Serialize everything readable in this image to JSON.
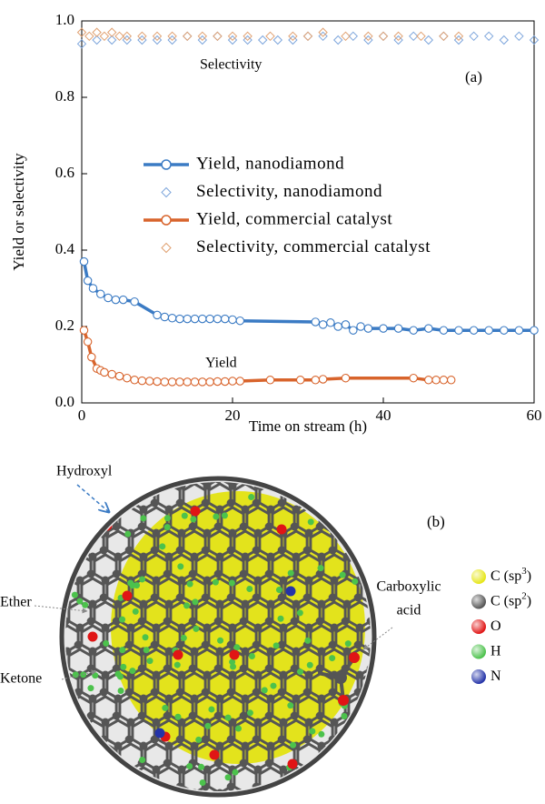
{
  "chart_data": {
    "type": "line",
    "label": "(a)",
    "x_label": "Time on stream (h)",
    "y_label": "Yield or selectivity",
    "annotations": [
      "Selectivity",
      "Yield"
    ],
    "xlim": [
      0,
      60
    ],
    "xticks": [
      0,
      20,
      40,
      60
    ],
    "ylim": [
      0,
      1
    ],
    "yticks": [
      {
        "value": 0,
        "label": "0.0"
      },
      0.2,
      0.4,
      0.6,
      0.8,
      {
        "value": 1,
        "label": "1.0"
      }
    ],
    "series": [
      {
        "name": "Yield, nanodiamond",
        "color": "#3b7bc4",
        "marker": "circle",
        "line": true,
        "x": [
          0.3,
          0.8,
          1.5,
          2.5,
          3.5,
          4.5,
          5.5,
          7,
          10,
          11,
          12,
          13,
          14,
          15,
          16,
          17,
          18,
          19,
          20,
          21,
          31,
          32,
          33,
          34,
          35,
          36,
          37,
          38,
          40,
          42,
          44,
          46,
          48,
          50,
          52,
          54,
          56,
          58,
          60
        ],
        "values": [
          0.37,
          0.32,
          0.3,
          0.285,
          0.275,
          0.27,
          0.27,
          0.265,
          0.23,
          0.225,
          0.222,
          0.22,
          0.22,
          0.22,
          0.22,
          0.22,
          0.22,
          0.22,
          0.218,
          0.215,
          0.212,
          0.205,
          0.21,
          0.2,
          0.205,
          0.19,
          0.2,
          0.195,
          0.195,
          0.195,
          0.19,
          0.195,
          0.19,
          0.19,
          0.19,
          0.19,
          0.19,
          0.19,
          0.19
        ]
      },
      {
        "name": "Selectivity, nanodiamond",
        "color": "#7ea6dc",
        "marker": "diamond",
        "line": false,
        "x": [
          0,
          2,
          4,
          6,
          8,
          10,
          12,
          14,
          16,
          18,
          20,
          22,
          24,
          26,
          28,
          30,
          32,
          34,
          36,
          38,
          40,
          42,
          44,
          46,
          48,
          50,
          52,
          54,
          56,
          58,
          60
        ],
        "values": [
          0.94,
          0.95,
          0.95,
          0.95,
          0.95,
          0.95,
          0.95,
          0.96,
          0.95,
          0.96,
          0.95,
          0.95,
          0.95,
          0.95,
          0.95,
          0.96,
          0.96,
          0.95,
          0.96,
          0.95,
          0.96,
          0.95,
          0.96,
          0.95,
          0.96,
          0.95,
          0.96,
          0.96,
          0.95,
          0.96,
          0.95
        ]
      },
      {
        "name": "Yield, commercial catalyst",
        "color": "#d8642c",
        "marker": "circle",
        "line": true,
        "x": [
          0.3,
          0.8,
          1.3,
          2,
          2.5,
          3,
          4,
          5,
          6,
          7,
          8,
          9,
          10,
          11,
          12,
          13,
          14,
          15,
          16,
          17,
          18,
          19,
          20,
          21,
          25,
          29,
          31,
          32,
          35,
          44,
          46,
          47,
          48,
          49
        ],
        "values": [
          0.19,
          0.16,
          0.12,
          0.09,
          0.085,
          0.08,
          0.075,
          0.07,
          0.065,
          0.06,
          0.058,
          0.057,
          0.056,
          0.055,
          0.055,
          0.055,
          0.055,
          0.055,
          0.055,
          0.055,
          0.056,
          0.056,
          0.057,
          0.057,
          0.06,
          0.06,
          0.06,
          0.062,
          0.065,
          0.065,
          0.06,
          0.06,
          0.06,
          0.06
        ]
      },
      {
        "name": "Selectivity, commercial catalyst",
        "color": "#e0a070",
        "marker": "diamond",
        "line": false,
        "x": [
          0,
          1,
          2,
          3,
          4,
          5,
          6,
          8,
          10,
          12,
          14,
          16,
          18,
          20,
          22,
          25,
          28,
          30,
          32,
          35,
          38,
          40,
          42,
          45,
          48,
          50
        ],
        "values": [
          0.97,
          0.96,
          0.97,
          0.96,
          0.97,
          0.96,
          0.96,
          0.96,
          0.96,
          0.96,
          0.96,
          0.96,
          0.96,
          0.96,
          0.96,
          0.96,
          0.96,
          0.96,
          0.97,
          0.96,
          0.96,
          0.96,
          0.96,
          0.96,
          0.96,
          0.96
        ]
      }
    ]
  },
  "figure_b": {
    "label": "(b)",
    "annotations": {
      "hydroxyl": "Hydroxyl",
      "ether": "Ether",
      "ketone": "Ketone",
      "carboxylic": [
        "Carboxylic",
        "acid"
      ]
    },
    "legend": [
      {
        "label": "C (sp",
        "sup": "3",
        "close": ")",
        "color": "#e6e619"
      },
      {
        "label": "C (sp",
        "sup": "2",
        "close": ")",
        "color": "#555555"
      },
      {
        "label": "O",
        "color": "#e01515"
      },
      {
        "label": "H",
        "color": "#4cc24c"
      },
      {
        "label": "N",
        "color": "#2433a8"
      }
    ]
  }
}
